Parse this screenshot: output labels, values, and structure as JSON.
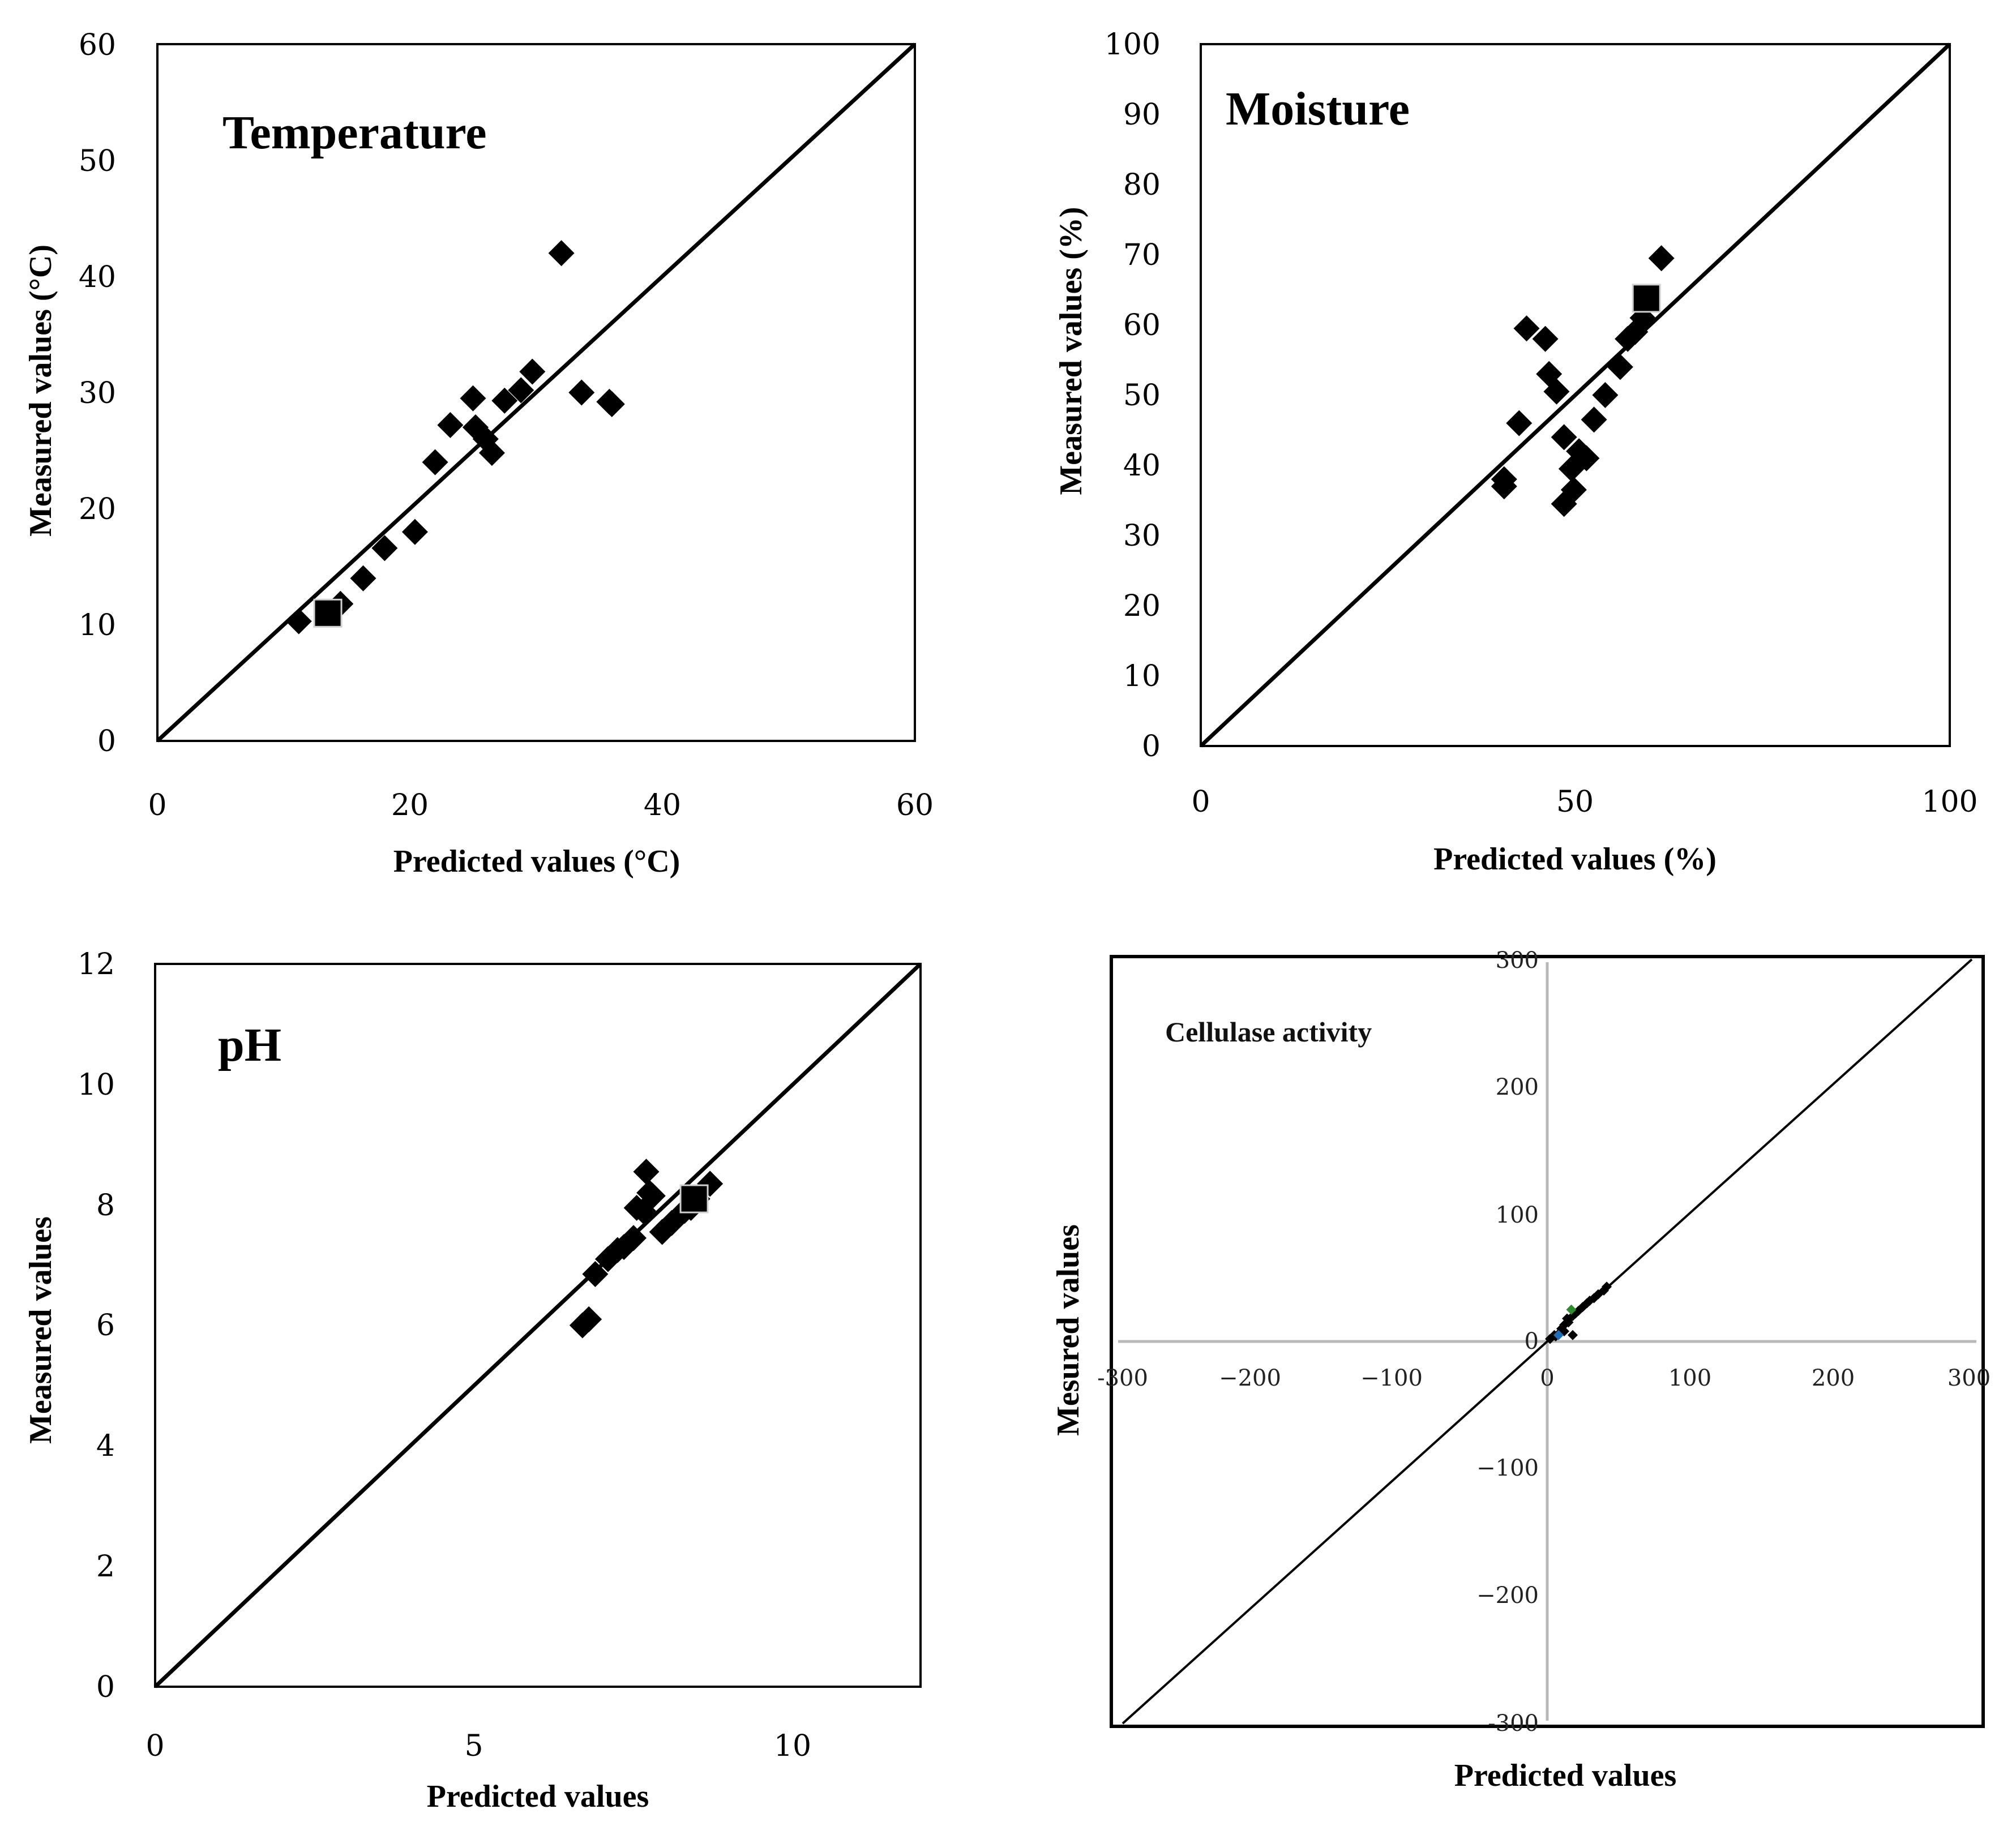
{
  "chart_data": [
    {
      "id": "temperature",
      "type": "scatter",
      "title": "Temperature",
      "xlabel": "Predicted values (°C)",
      "ylabel": "Measured values (°C)",
      "xlim": [
        0,
        60
      ],
      "ylim": [
        0,
        60
      ],
      "xticks": [
        "0",
        "20",
        "40",
        "60"
      ],
      "yticks": [
        "0",
        "10",
        "20",
        "30",
        "40",
        "50",
        "60"
      ],
      "line": [
        [
          0,
          0
        ],
        [
          60,
          60
        ]
      ],
      "series": [
        {
          "name": "data",
          "points": [
            [
              11.2,
              10.3
            ],
            [
              14.5,
              11.8
            ],
            [
              16.3,
              14.0
            ],
            [
              18.0,
              16.6
            ],
            [
              20.4,
              18.0
            ],
            [
              22.0,
              24.0
            ],
            [
              23.2,
              27.2
            ],
            [
              25.0,
              29.5
            ],
            [
              25.2,
              27.0
            ],
            [
              26.0,
              26.0
            ],
            [
              26.5,
              24.8
            ],
            [
              27.5,
              29.3
            ],
            [
              28.8,
              30.2
            ],
            [
              29.7,
              31.8
            ],
            [
              32.0,
              42.0
            ],
            [
              33.6,
              30.0
            ],
            [
              35.8,
              29.2
            ],
            [
              36.0,
              29.0
            ]
          ]
        },
        {
          "name": "highlight",
          "points": [
            [
              13.5,
              11.0
            ]
          ]
        }
      ]
    },
    {
      "id": "moisture",
      "type": "scatter",
      "title": "Moisture",
      "xlabel": "Predicted values (%)",
      "ylabel": "Measured values (%)",
      "xlim": [
        0,
        100
      ],
      "ylim": [
        0,
        100
      ],
      "xticks": [
        "0",
        "50",
        "100"
      ],
      "yticks": [
        "0",
        "10",
        "20",
        "30",
        "40",
        "50",
        "60",
        "70",
        "80",
        "90",
        "100"
      ],
      "line": [
        [
          0,
          0
        ],
        [
          100,
          100
        ]
      ],
      "series": [
        {
          "name": "data",
          "points": [
            [
              40.5,
              38.0
            ],
            [
              40.5,
              37.0
            ],
            [
              42.5,
              46.0
            ],
            [
              43.5,
              59.5
            ],
            [
              46.0,
              58.0
            ],
            [
              46.5,
              53.0
            ],
            [
              47.5,
              50.5
            ],
            [
              48.5,
              44.0
            ],
            [
              48.5,
              34.5
            ],
            [
              49.5,
              39.5
            ],
            [
              49.8,
              36.5
            ],
            [
              50.5,
              42.0
            ],
            [
              51.5,
              41.0
            ],
            [
              52.5,
              46.5
            ],
            [
              54.0,
              50.0
            ],
            [
              56.0,
              54.0
            ],
            [
              57.0,
              58.0
            ],
            [
              58.0,
              59.0
            ],
            [
              59.0,
              61.0
            ],
            [
              61.5,
              69.5
            ]
          ]
        },
        {
          "name": "highlight",
          "points": [
            [
              59.5,
              63.8
            ]
          ]
        }
      ]
    },
    {
      "id": "ph",
      "type": "scatter",
      "title": "pH",
      "xlabel": "Predicted values",
      "ylabel": "Measured values",
      "xlim": [
        0,
        12
      ],
      "ylim": [
        0,
        12
      ],
      "xticks": [
        "0",
        "5",
        "10"
      ],
      "yticks": [
        "0",
        "2",
        "4",
        "6",
        "8",
        "10",
        "12"
      ],
      "line": [
        [
          0,
          0
        ],
        [
          12,
          12
        ]
      ],
      "series": [
        {
          "name": "data",
          "points": [
            [
              6.7,
              6.0
            ],
            [
              6.8,
              6.1
            ],
            [
              6.9,
              6.85
            ],
            [
              7.1,
              7.1
            ],
            [
              7.25,
              7.25
            ],
            [
              7.35,
              7.3
            ],
            [
              7.5,
              7.45
            ],
            [
              7.55,
              7.95
            ],
            [
              7.65,
              7.9
            ],
            [
              7.7,
              8.55
            ],
            [
              7.75,
              8.2
            ],
            [
              7.8,
              8.15
            ],
            [
              7.95,
              7.55
            ],
            [
              8.1,
              7.7
            ],
            [
              8.3,
              7.9
            ],
            [
              8.4,
              7.95
            ],
            [
              8.5,
              8.1
            ],
            [
              8.7,
              8.35
            ]
          ]
        },
        {
          "name": "highlight",
          "points": [
            [
              8.45,
              8.1
            ]
          ]
        }
      ]
    },
    {
      "id": "cellulase",
      "type": "scatter",
      "title": "Cellulase activity",
      "xlabel": "Predicted values",
      "ylabel": "Mesured values",
      "xlim": [
        -300,
        300
      ],
      "ylim": [
        -300,
        300
      ],
      "xticks": [
        "-300",
        "−200",
        "−100",
        "0",
        "100",
        "200",
        "300"
      ],
      "yticks": [
        "-300",
        "−200",
        "−100",
        "0",
        "100",
        "200",
        "300"
      ],
      "line": [
        [
          -300,
          -300
        ],
        [
          300,
          300
        ]
      ],
      "series": [
        {
          "name": "data",
          "points": [
            [
              2,
              2
            ],
            [
              5,
              5
            ],
            [
              8,
              6
            ],
            [
              10,
              10
            ],
            [
              12,
              13
            ],
            [
              15,
              15
            ],
            [
              14,
              18
            ],
            [
              18,
              20
            ],
            [
              20,
              22
            ],
            [
              22,
              24
            ],
            [
              25,
              27
            ],
            [
              28,
              30
            ],
            [
              30,
              32
            ],
            [
              33,
              34
            ],
            [
              36,
              37
            ],
            [
              40,
              40
            ],
            [
              42,
              43
            ],
            [
              12,
              8
            ],
            [
              6,
              4
            ],
            [
              18,
              5
            ]
          ]
        },
        {
          "name": "green",
          "color": "#2e8b2e",
          "points": [
            [
              17,
              25
            ]
          ]
        },
        {
          "name": "blue",
          "color": "#1e6fb8",
          "points": [
            [
              8,
              5
            ]
          ]
        }
      ]
    }
  ]
}
